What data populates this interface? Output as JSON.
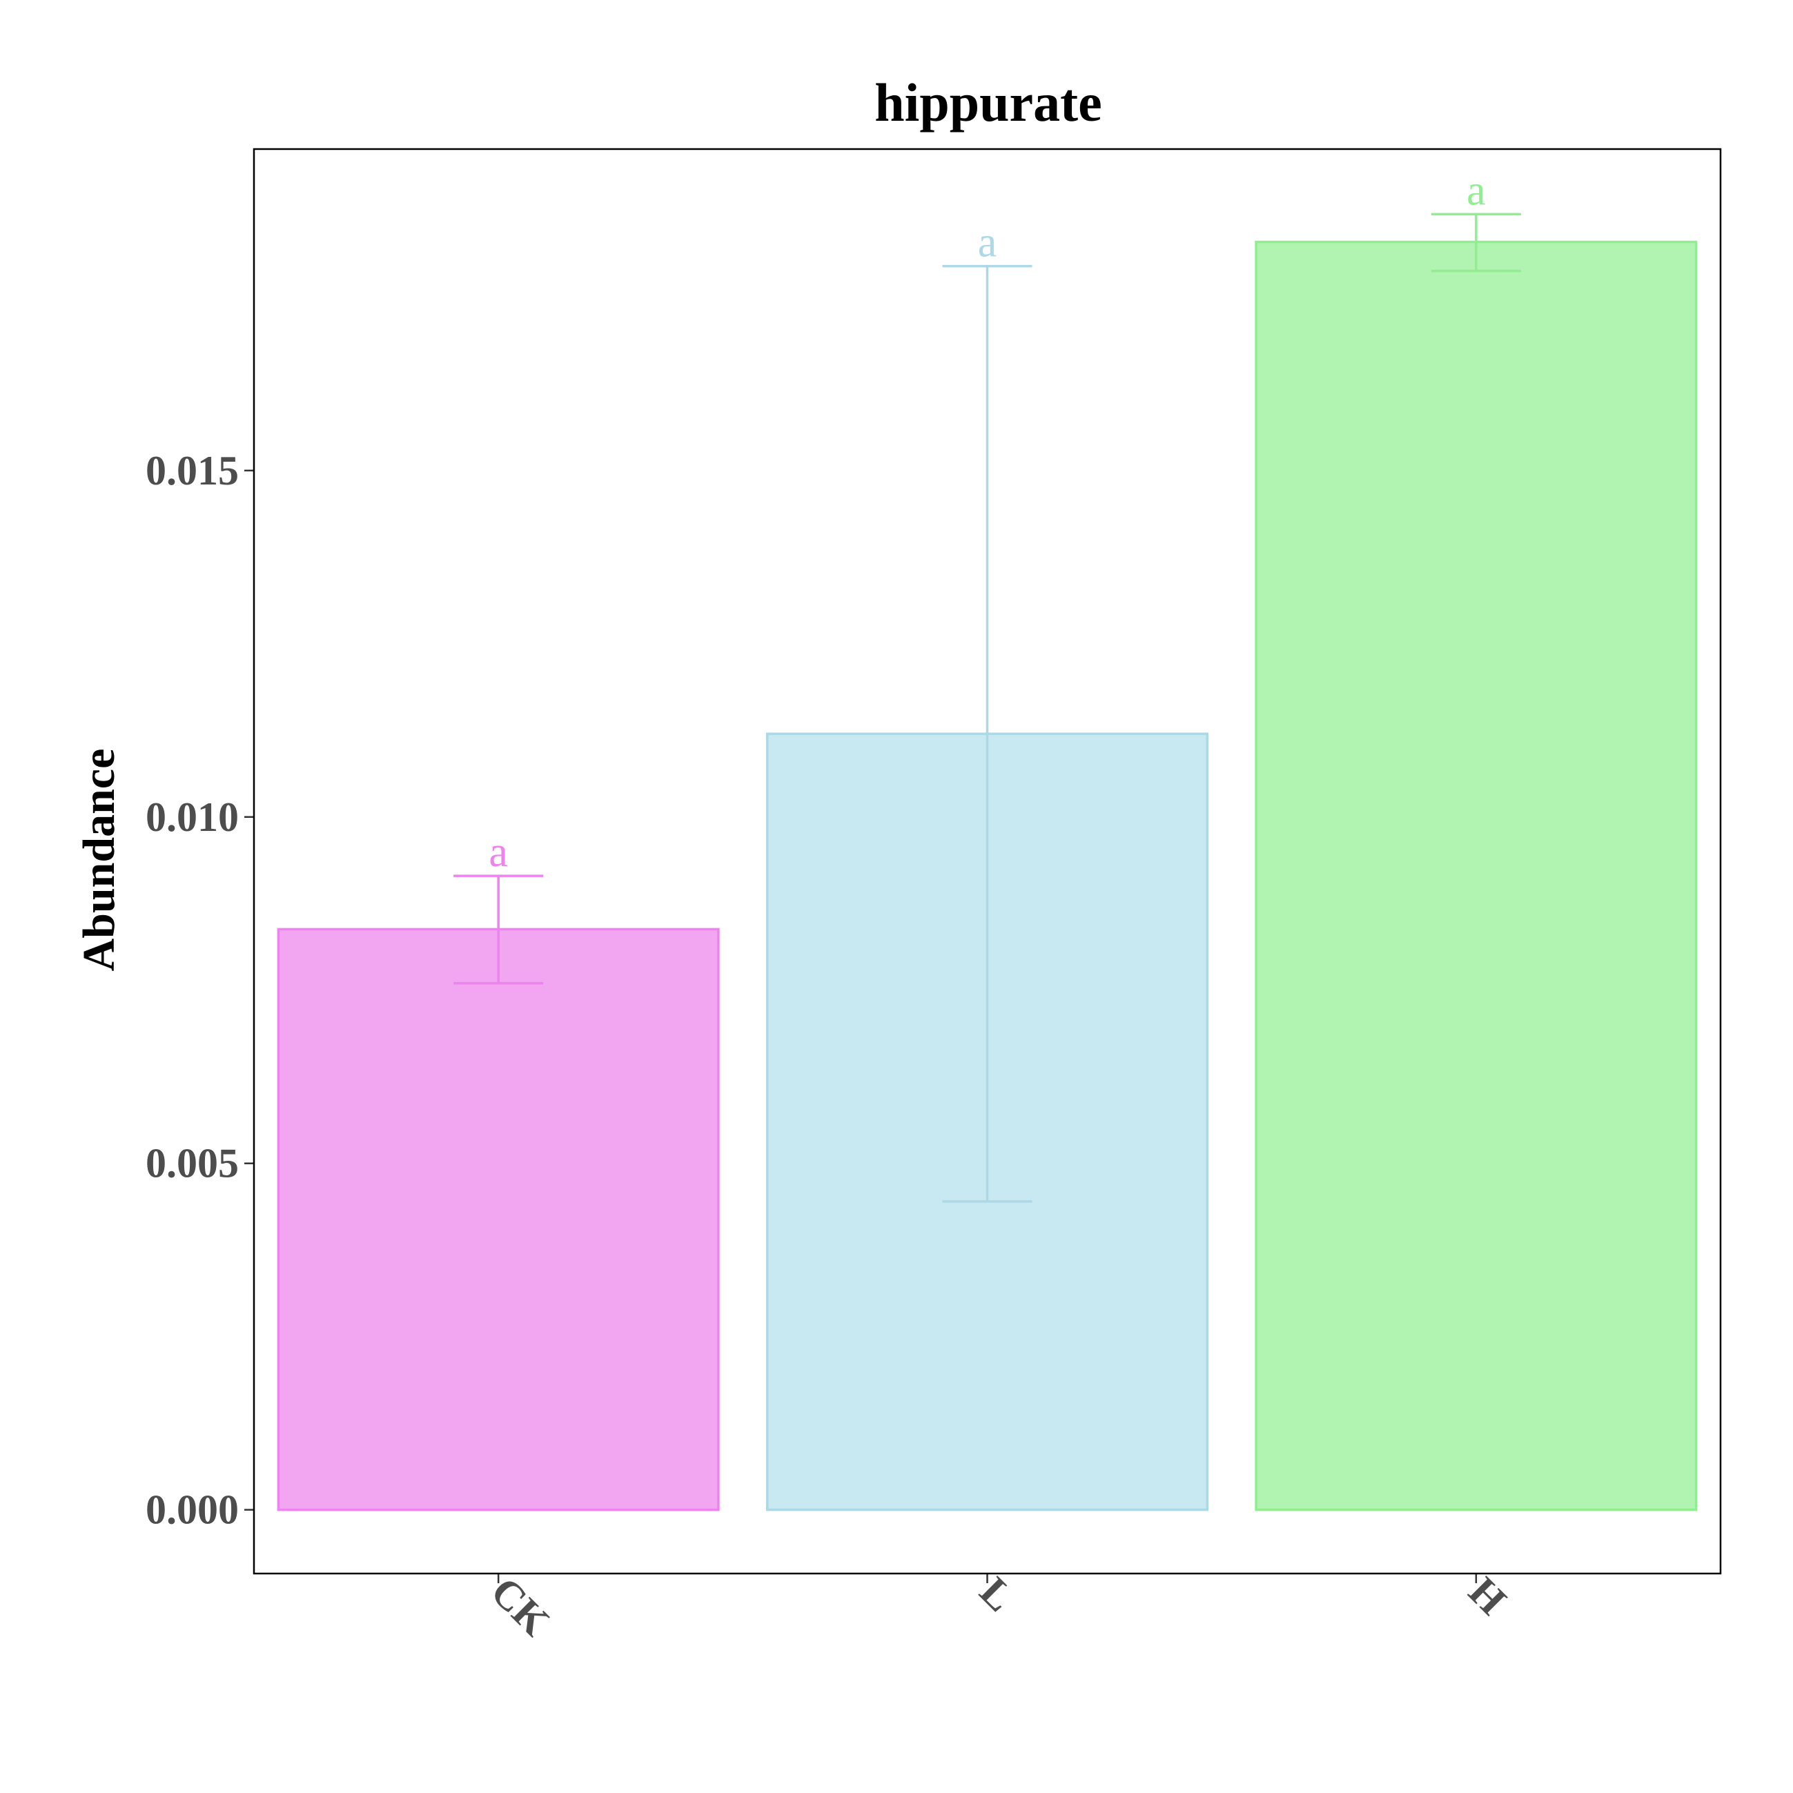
{
  "chart_data": {
    "type": "bar",
    "title": "hippurate",
    "xlabel": "",
    "ylabel": "Abundance",
    "categories": [
      "CK",
      "L",
      "H"
    ],
    "values": [
      0.00838,
      0.0112,
      0.0183
    ],
    "error_upper": [
      0.00915,
      0.01795,
      0.0187
    ],
    "error_lower": [
      0.0076,
      0.00445,
      0.01788
    ],
    "significance_labels": [
      "a",
      "a",
      "a"
    ],
    "ylim": [
      -0.00092,
      0.01964
    ],
    "yticks": [
      0.0,
      0.005,
      0.01,
      0.015
    ],
    "ytick_labels": [
      "0.000",
      "0.005",
      "0.010",
      "0.015"
    ],
    "xtick_rotation_deg": 45,
    "grid": false,
    "legend": "none",
    "colors": {
      "fill": [
        "#f2a6f2",
        "#c8e8f2",
        "#b1f3b0"
      ],
      "stroke": [
        "#ee82ee",
        "#add8e6",
        "#90ee90"
      ]
    }
  }
}
